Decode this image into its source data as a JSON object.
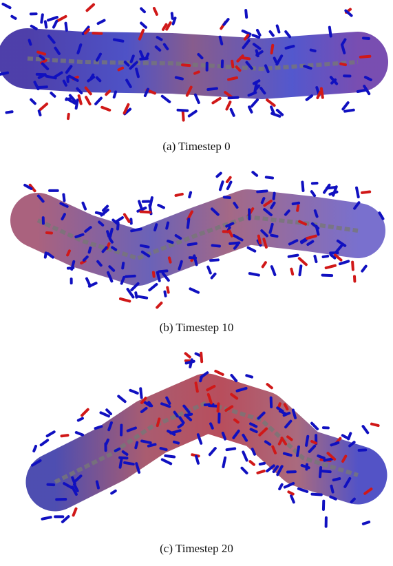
{
  "panels": [
    {
      "caption": "(a)  Timestep 0"
    },
    {
      "caption": "(b)  Timestep 10"
    },
    {
      "caption": "(c)  Timestep 20"
    }
  ]
}
